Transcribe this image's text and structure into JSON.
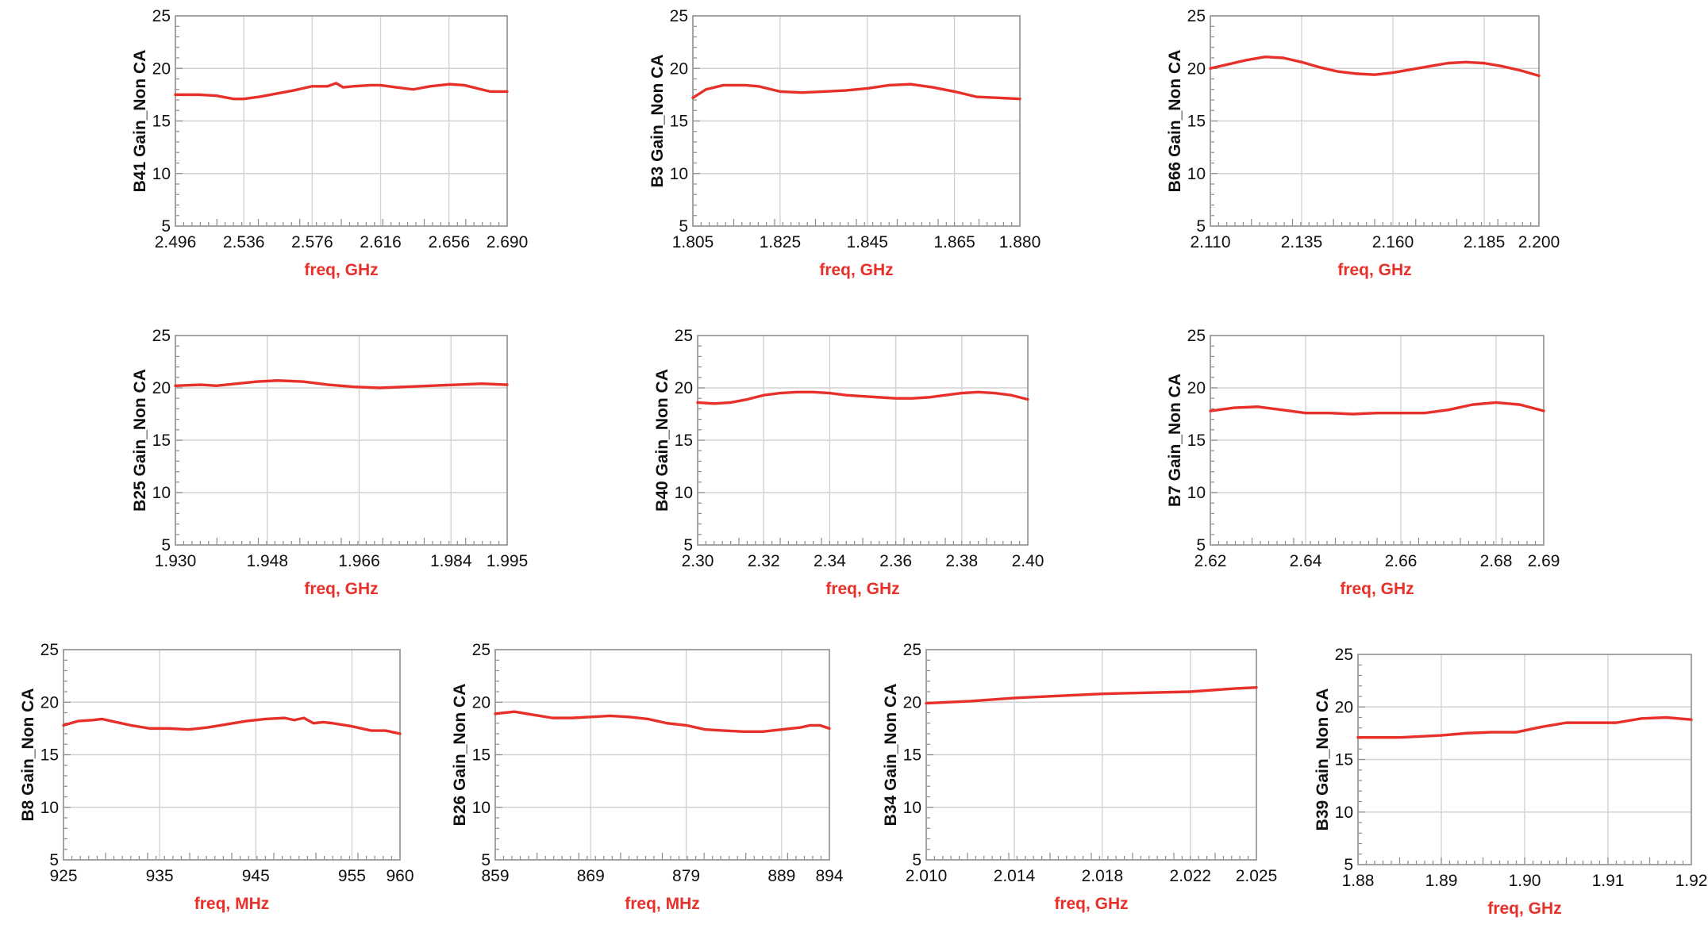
{
  "style": {
    "series_color": "#e8302a",
    "axis_label_color": "#e8302a",
    "grid": true
  },
  "chart_data": [
    {
      "type": "line",
      "ylabel": "B41 Gain_Non CA",
      "xlabel": "freq, GHz",
      "xlim": [
        2.496,
        2.69
      ],
      "ylim": [
        5,
        25
      ],
      "xticks": [
        "2.496",
        "2.536",
        "2.576",
        "2.616",
        "2.656",
        "2.690"
      ],
      "yticks": [
        "5",
        "10",
        "15",
        "20",
        "25"
      ],
      "series": [
        {
          "x": [
            2.496,
            2.51,
            2.52,
            2.53,
            2.536,
            2.545,
            2.555,
            2.565,
            2.576,
            2.585,
            2.59,
            2.594,
            2.6,
            2.61,
            2.616,
            2.625,
            2.635,
            2.645,
            2.656,
            2.665,
            2.675,
            2.68,
            2.69
          ],
          "y": [
            17.5,
            17.5,
            17.4,
            17.1,
            17.1,
            17.3,
            17.6,
            17.9,
            18.3,
            18.3,
            18.6,
            18.2,
            18.3,
            18.4,
            18.4,
            18.2,
            18.0,
            18.3,
            18.5,
            18.4,
            18.0,
            17.8,
            17.8
          ]
        }
      ]
    },
    {
      "type": "line",
      "ylabel": "B3 Gain_Non CA",
      "xlabel": "freq, GHz",
      "xlim": [
        1.805,
        1.88
      ],
      "ylim": [
        5,
        25
      ],
      "xticks": [
        "1.805",
        "1.825",
        "1.845",
        "1.865",
        "1.880"
      ],
      "yticks": [
        "5",
        "10",
        "15",
        "20",
        "25"
      ],
      "series": [
        {
          "x": [
            1.805,
            1.808,
            1.812,
            1.817,
            1.82,
            1.825,
            1.83,
            1.835,
            1.84,
            1.845,
            1.85,
            1.855,
            1.86,
            1.865,
            1.87,
            1.875,
            1.88
          ],
          "y": [
            17.2,
            18.0,
            18.4,
            18.4,
            18.3,
            17.8,
            17.7,
            17.8,
            17.9,
            18.1,
            18.4,
            18.5,
            18.2,
            17.8,
            17.3,
            17.2,
            17.1
          ]
        }
      ]
    },
    {
      "type": "line",
      "ylabel": "B66 Gain_Non CA",
      "xlabel": "freq, GHz",
      "xlim": [
        2.11,
        2.2
      ],
      "ylim": [
        5,
        25
      ],
      "xticks": [
        "2.110",
        "2.135",
        "2.160",
        "2.185",
        "2.200"
      ],
      "yticks": [
        "5",
        "10",
        "15",
        "20",
        "25"
      ],
      "series": [
        {
          "x": [
            2.11,
            2.115,
            2.12,
            2.125,
            2.13,
            2.135,
            2.14,
            2.145,
            2.15,
            2.155,
            2.16,
            2.165,
            2.17,
            2.175,
            2.18,
            2.185,
            2.19,
            2.195,
            2.2
          ],
          "y": [
            20.0,
            20.4,
            20.8,
            21.1,
            21.0,
            20.6,
            20.1,
            19.7,
            19.5,
            19.4,
            19.6,
            19.9,
            20.2,
            20.5,
            20.6,
            20.5,
            20.2,
            19.8,
            19.3
          ]
        }
      ]
    },
    {
      "type": "line",
      "ylabel": "B25 Gain_Non CA",
      "xlabel": "freq, GHz",
      "xlim": [
        1.93,
        1.995
      ],
      "ylim": [
        5,
        25
      ],
      "xticks": [
        "1.930",
        "1.948",
        "1.966",
        "1.984",
        "1.995"
      ],
      "yticks": [
        "5",
        "10",
        "15",
        "20",
        "25"
      ],
      "series": [
        {
          "x": [
            1.93,
            1.935,
            1.938,
            1.942,
            1.946,
            1.95,
            1.955,
            1.96,
            1.965,
            1.97,
            1.975,
            1.98,
            1.985,
            1.99,
            1.995
          ],
          "y": [
            20.2,
            20.3,
            20.2,
            20.4,
            20.6,
            20.7,
            20.6,
            20.3,
            20.1,
            20.0,
            20.1,
            20.2,
            20.3,
            20.4,
            20.3
          ]
        }
      ]
    },
    {
      "type": "line",
      "ylabel": "B40 Gain_Non CA",
      "xlabel": "freq, GHz",
      "xlim": [
        2.3,
        2.4
      ],
      "ylim": [
        5,
        25
      ],
      "xticks": [
        "2.30",
        "2.32",
        "2.34",
        "2.36",
        "2.38",
        "2.40"
      ],
      "yticks": [
        "5",
        "10",
        "15",
        "20",
        "25"
      ],
      "series": [
        {
          "x": [
            2.3,
            2.305,
            2.31,
            2.315,
            2.32,
            2.325,
            2.33,
            2.335,
            2.34,
            2.345,
            2.35,
            2.355,
            2.36,
            2.365,
            2.37,
            2.375,
            2.38,
            2.385,
            2.39,
            2.395,
            2.4
          ],
          "y": [
            18.6,
            18.5,
            18.6,
            18.9,
            19.3,
            19.5,
            19.6,
            19.6,
            19.5,
            19.3,
            19.2,
            19.1,
            19.0,
            19.0,
            19.1,
            19.3,
            19.5,
            19.6,
            19.5,
            19.3,
            18.9
          ]
        }
      ]
    },
    {
      "type": "line",
      "ylabel": "B7 Gain_Non CA",
      "xlabel": "freq, GHz",
      "xlim": [
        2.62,
        2.69
      ],
      "ylim": [
        5,
        25
      ],
      "xticks": [
        "2.62",
        "2.64",
        "2.66",
        "2.68",
        "2.69"
      ],
      "yticks": [
        "5",
        "10",
        "15",
        "20",
        "25"
      ],
      "series": [
        {
          "x": [
            2.62,
            2.625,
            2.63,
            2.635,
            2.64,
            2.645,
            2.65,
            2.655,
            2.66,
            2.665,
            2.67,
            2.675,
            2.68,
            2.685,
            2.69
          ],
          "y": [
            17.8,
            18.1,
            18.2,
            17.9,
            17.6,
            17.6,
            17.5,
            17.6,
            17.6,
            17.6,
            17.9,
            18.4,
            18.6,
            18.4,
            17.8
          ]
        }
      ]
    },
    {
      "type": "line",
      "ylabel": "B8 Gain_Non CA",
      "xlabel": "freq, MHz",
      "xlim": [
        925,
        960
      ],
      "ylim": [
        5,
        25
      ],
      "xticks": [
        "925",
        "935",
        "945",
        "955",
        "960"
      ],
      "yticks": [
        "5",
        "10",
        "15",
        "20",
        "25"
      ],
      "series": [
        {
          "x": [
            925,
            926.5,
            928,
            929,
            930.5,
            932,
            934,
            936,
            938,
            940,
            942,
            944,
            946,
            948,
            949,
            950,
            951,
            952,
            953,
            955,
            957,
            958.5,
            960
          ],
          "y": [
            17.8,
            18.2,
            18.3,
            18.4,
            18.1,
            17.8,
            17.5,
            17.5,
            17.4,
            17.6,
            17.9,
            18.2,
            18.4,
            18.5,
            18.3,
            18.5,
            18.0,
            18.1,
            18.0,
            17.7,
            17.3,
            17.3,
            17.0
          ]
        }
      ]
    },
    {
      "type": "line",
      "ylabel": "B26 Gain_Non CA",
      "xlabel": "freq, MHz",
      "xlim": [
        859,
        894
      ],
      "ylim": [
        5,
        25
      ],
      "xticks": [
        "859",
        "869",
        "879",
        "889",
        "894"
      ],
      "yticks": [
        "5",
        "10",
        "15",
        "20",
        "25"
      ],
      "series": [
        {
          "x": [
            859,
            861,
            863,
            865,
            867,
            869,
            871,
            873,
            875,
            877,
            879,
            881,
            883,
            885,
            887,
            889,
            891,
            892,
            893,
            894
          ],
          "y": [
            18.9,
            19.1,
            18.8,
            18.5,
            18.5,
            18.6,
            18.7,
            18.6,
            18.4,
            18.0,
            17.8,
            17.4,
            17.3,
            17.2,
            17.2,
            17.4,
            17.6,
            17.8,
            17.8,
            17.5
          ]
        }
      ]
    },
    {
      "type": "line",
      "ylabel": "B34 Gain_Non CA",
      "xlabel": "freq, GHz",
      "xlim": [
        2.01,
        2.025
      ],
      "ylim": [
        5,
        25
      ],
      "xticks": [
        "2.010",
        "2.014",
        "2.018",
        "2.022",
        "2.025"
      ],
      "yticks": [
        "5",
        "10",
        "15",
        "20",
        "25"
      ],
      "series": [
        {
          "x": [
            2.01,
            2.012,
            2.014,
            2.016,
            2.018,
            2.02,
            2.022,
            2.024,
            2.025
          ],
          "y": [
            19.9,
            20.1,
            20.4,
            20.6,
            20.8,
            20.9,
            21.0,
            21.3,
            21.4
          ]
        }
      ]
    },
    {
      "type": "line",
      "ylabel": "B39 Gain_Non CA",
      "xlabel": "freq, GHz",
      "xlim": [
        1.88,
        1.92
      ],
      "ylim": [
        5,
        25
      ],
      "xticks": [
        "1.88",
        "1.89",
        "1.90",
        "1.91",
        "1.92"
      ],
      "yticks": [
        "5",
        "10",
        "15",
        "20",
        "25"
      ],
      "series": [
        {
          "x": [
            1.88,
            1.885,
            1.89,
            1.893,
            1.896,
            1.899,
            1.902,
            1.905,
            1.908,
            1.911,
            1.914,
            1.917,
            1.92
          ],
          "y": [
            17.1,
            17.1,
            17.3,
            17.5,
            17.6,
            17.6,
            18.1,
            18.5,
            18.5,
            18.5,
            18.9,
            19.0,
            18.8
          ]
        }
      ]
    }
  ]
}
